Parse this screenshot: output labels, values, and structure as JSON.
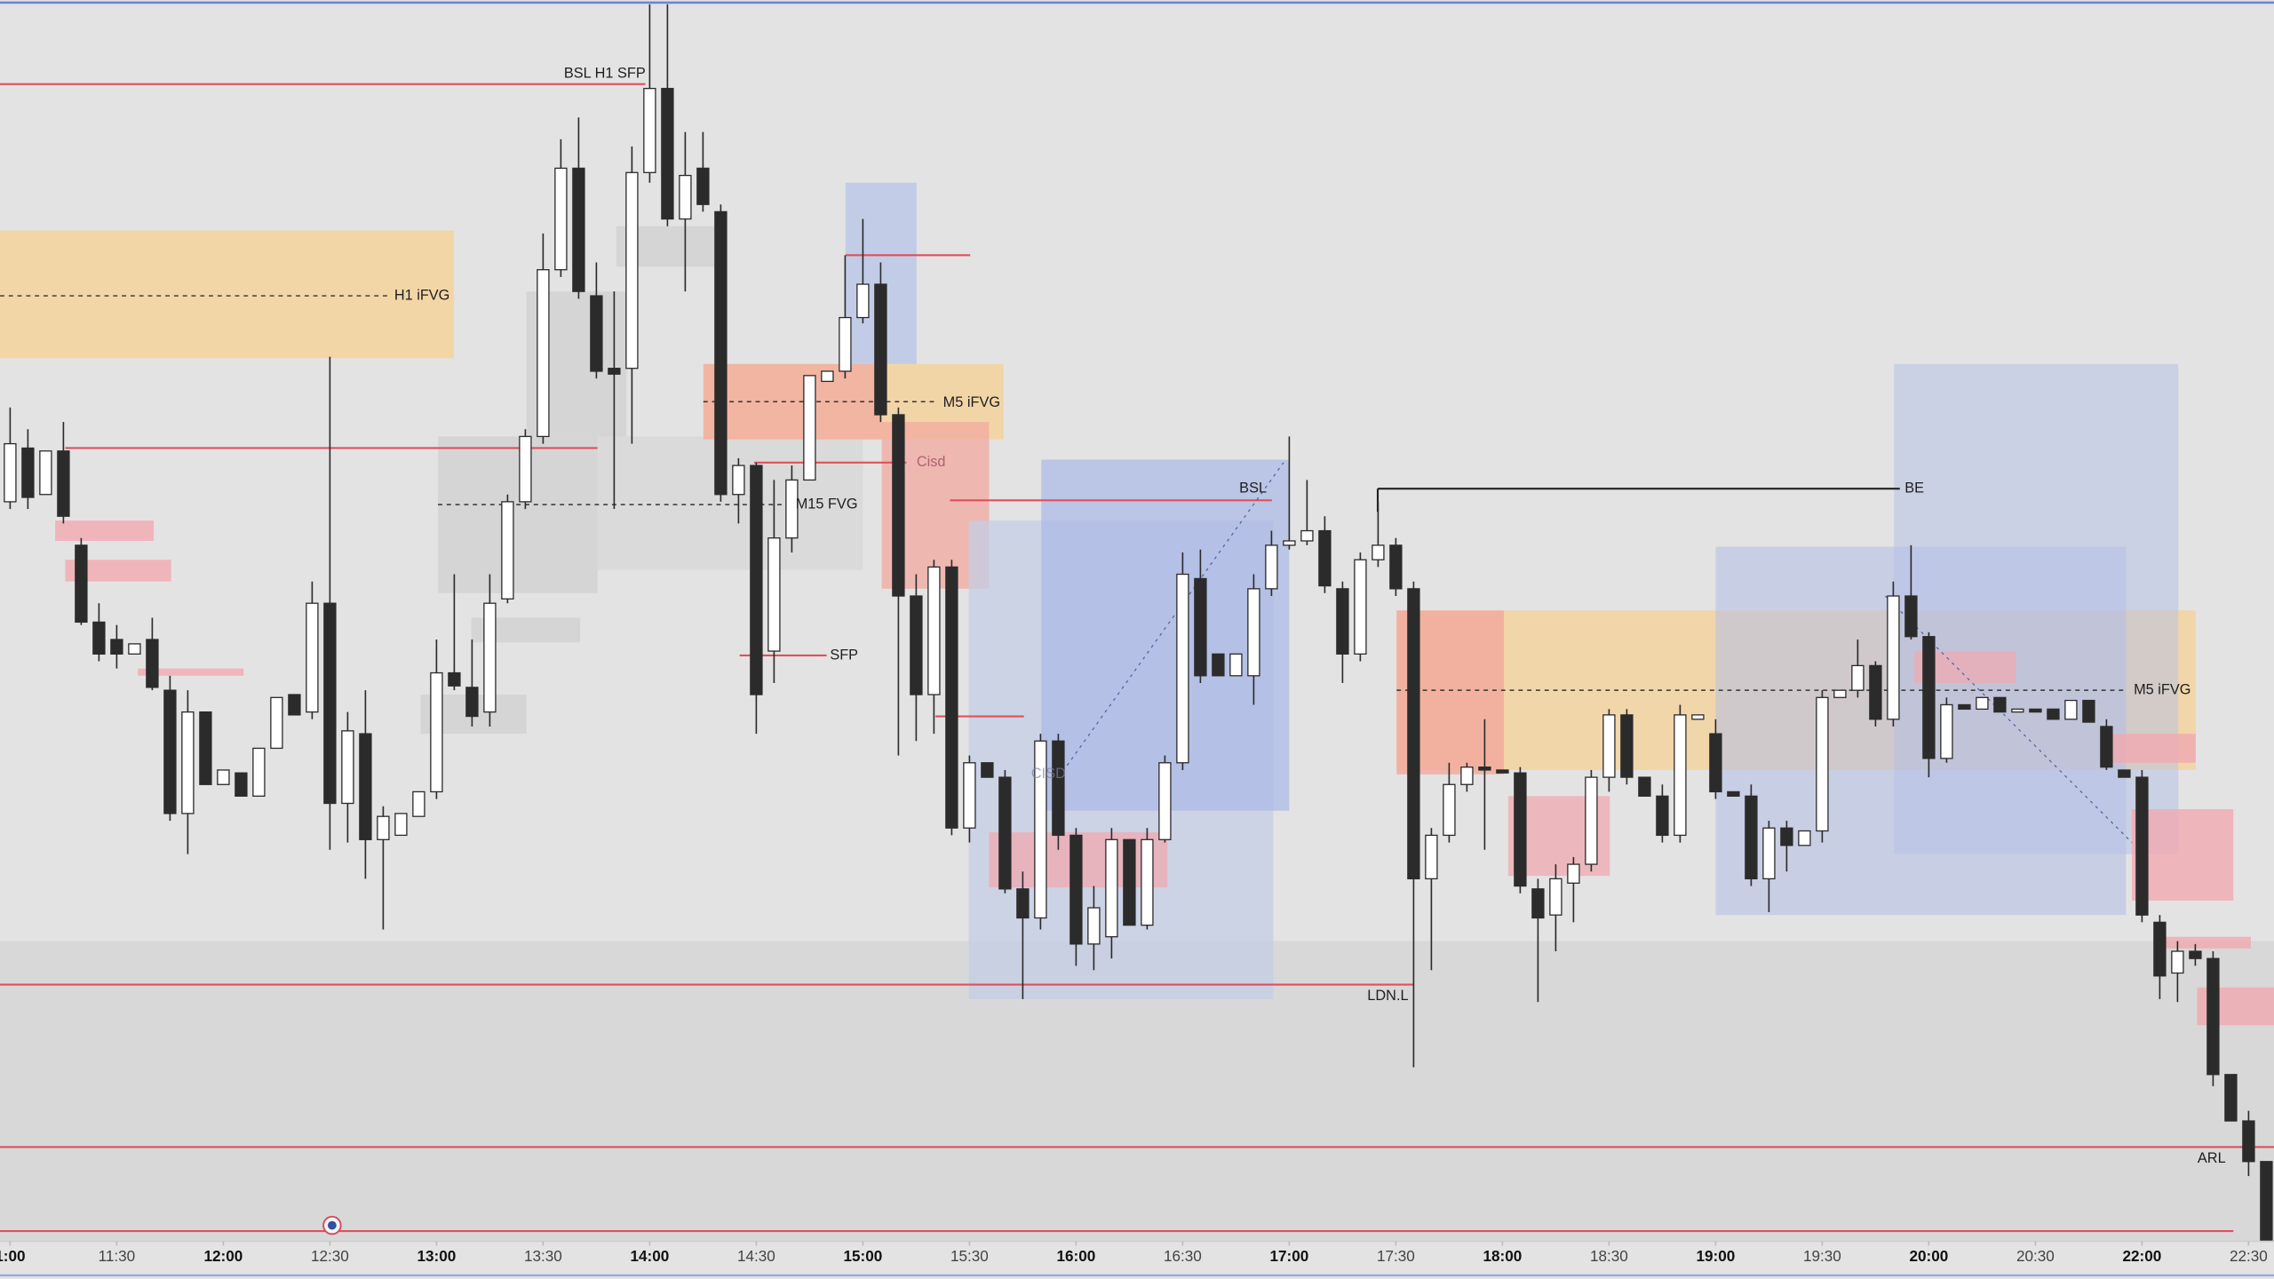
{
  "chart_data": {
    "type": "candlestick",
    "up_color": "#ffffff",
    "down_color": "#2b2b2b",
    "outline_color": "#2b2b2b",
    "xlim": [
      -0.57,
      127.43
    ],
    "ylim": [
      25,
      880
    ],
    "xticks": [
      {
        "value": 0,
        "label": "1:00"
      },
      {
        "value": 6,
        "label": "11:30"
      },
      {
        "value": 12,
        "label": "12:00"
      },
      {
        "value": 18,
        "label": "12:30"
      },
      {
        "value": 24,
        "label": "13:00"
      },
      {
        "value": 30,
        "label": "13:30"
      },
      {
        "value": 36,
        "label": "14:00"
      },
      {
        "value": 42,
        "label": "14:30"
      },
      {
        "value": 48,
        "label": "15:00"
      },
      {
        "value": 54,
        "label": "15:30"
      },
      {
        "value": 60,
        "label": "16:00"
      },
      {
        "value": 66,
        "label": "16:30"
      },
      {
        "value": 72,
        "label": "17:00"
      },
      {
        "value": 78,
        "label": "17:30"
      },
      {
        "value": 84,
        "label": "18:00"
      },
      {
        "value": 90,
        "label": "18:30"
      },
      {
        "value": 96,
        "label": "19:00"
      },
      {
        "value": 102,
        "label": "19:30"
      },
      {
        "value": 108,
        "label": "20:00"
      },
      {
        "value": 114,
        "label": "20:30"
      },
      {
        "value": 120,
        "label": "22:00"
      },
      {
        "value": 126,
        "label": "22:30"
      }
    ],
    "annotations": [
      "BSL H1 SFP",
      "H1 iFVG",
      "M5 iFVG",
      "Cisd",
      "M15 FVG",
      "SFP",
      "BSL",
      "BE",
      "LDN.L",
      "ARL",
      "M5 iFVG",
      "CISD"
    ],
    "open": [
      535,
      572,
      540,
      570,
      505,
      452,
      440,
      430,
      440,
      405,
      320,
      390,
      340,
      348,
      332,
      365,
      402,
      390,
      465,
      327,
      375,
      302,
      305,
      318,
      335,
      417,
      407,
      390,
      468,
      535,
      580,
      695,
      765,
      677,
      627,
      627,
      762,
      820,
      730,
      765,
      735,
      540,
      560,
      432,
      510,
      550,
      618,
      625,
      662,
      685,
      595,
      470,
      402,
      490,
      310,
      355,
      345,
      268,
      248,
      370,
      305,
      230,
      235,
      302,
      243,
      302,
      355,
      482,
      430,
      415,
      415,
      475,
      505,
      508,
      515,
      475,
      430,
      495,
      505,
      475,
      275,
      305,
      340,
      352,
      350,
      348,
      268,
      250,
      272,
      285,
      345,
      388,
      345,
      332,
      305,
      385,
      375,
      335,
      332,
      275,
      310,
      298,
      308,
      400,
      405,
      422,
      385,
      470,
      442,
      358,
      395,
      392,
      400,
      390,
      392,
      392,
      385,
      398,
      380,
      350,
      345,
      245,
      210,
      225,
      220,
      140,
      108,
      80
    ],
    "high": [
      600,
      585,
      570,
      590,
      510,
      465,
      450,
      437,
      455,
      415,
      405,
      390,
      350,
      348,
      365,
      400,
      402,
      480,
      635,
      390,
      405,
      325,
      320,
      335,
      440,
      485,
      440,
      485,
      540,
      585,
      720,
      785,
      800,
      700,
      680,
      780,
      878,
      878,
      790,
      790,
      740,
      565,
      562,
      550,
      560,
      622,
      625,
      705,
      730,
      700,
      600,
      485,
      495,
      495,
      360,
      355,
      350,
      280,
      375,
      375,
      310,
      270,
      310,
      302,
      310,
      360,
      500,
      502,
      430,
      430,
      485,
      515,
      580,
      550,
      525,
      480,
      500,
      535,
      510,
      480,
      310,
      355,
      355,
      385,
      350,
      352,
      275,
      285,
      290,
      350,
      392,
      392,
      345,
      340,
      395,
      388,
      385,
      335,
      340,
      315,
      315,
      308,
      405,
      405,
      440,
      425,
      480,
      505,
      445,
      400,
      395,
      400,
      400,
      392,
      392,
      392,
      398,
      398,
      385,
      350,
      350,
      250,
      232,
      230,
      225,
      140,
      115,
      80
    ],
    "low": [
      530,
      530,
      540,
      520,
      450,
      425,
      420,
      430,
      405,
      315,
      292,
      340,
      340,
      332,
      332,
      365,
      388,
      385,
      295,
      300,
      275,
      240,
      305,
      318,
      330,
      405,
      380,
      380,
      465,
      530,
      575,
      690,
      675,
      620,
      530,
      575,
      755,
      725,
      680,
      735,
      535,
      520,
      375,
      410,
      500,
      550,
      618,
      620,
      658,
      590,
      360,
      370,
      375,
      305,
      300,
      345,
      265,
      192,
      240,
      295,
      215,
      212,
      220,
      243,
      240,
      300,
      350,
      410,
      415,
      415,
      395,
      470,
      502,
      505,
      472,
      410,
      425,
      490,
      470,
      145,
      212,
      300,
      335,
      295,
      348,
      265,
      190,
      225,
      245,
      280,
      335,
      340,
      332,
      300,
      300,
      385,
      330,
      332,
      270,
      252,
      280,
      298,
      300,
      400,
      400,
      380,
      380,
      440,
      345,
      355,
      392,
      392,
      390,
      390,
      390,
      385,
      385,
      383,
      350,
      345,
      245,
      192,
      190,
      215,
      132,
      108,
      70,
      25
    ],
    "close": [
      575,
      538,
      570,
      525,
      452,
      430,
      430,
      437,
      407,
      320,
      390,
      340,
      350,
      332,
      365,
      400,
      388,
      465,
      327,
      377,
      302,
      318,
      320,
      335,
      417,
      408,
      387,
      465,
      535,
      580,
      695,
      765,
      680,
      625,
      623,
      762,
      820,
      730,
      760,
      740,
      540,
      560,
      402,
      510,
      550,
      622,
      625,
      662,
      685,
      595,
      470,
      402,
      490,
      310,
      355,
      345,
      268,
      248,
      370,
      305,
      230,
      255,
      302,
      243,
      302,
      355,
      485,
      415,
      415,
      430,
      475,
      505,
      508,
      515,
      477,
      430,
      495,
      505,
      475,
      275,
      305,
      340,
      352,
      350,
      348,
      270,
      248,
      275,
      285,
      345,
      388,
      345,
      332,
      305,
      388,
      388,
      335,
      332,
      275,
      310,
      298,
      308,
      400,
      405,
      422,
      385,
      470,
      442,
      358,
      395,
      392,
      400,
      390,
      392,
      390,
      385,
      398,
      383,
      352,
      345,
      250,
      208,
      225,
      220,
      140,
      108,
      80,
      25
    ]
  }
}
